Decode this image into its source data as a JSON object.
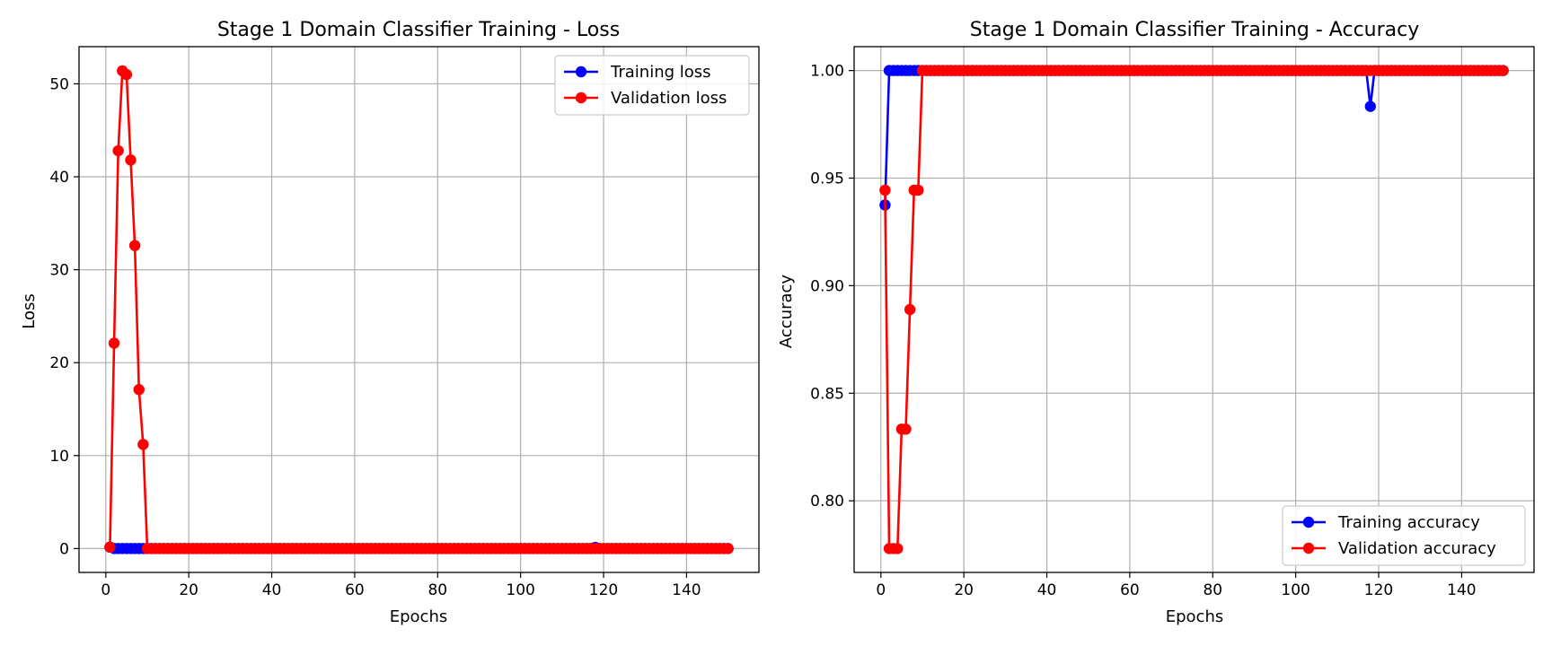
{
  "colors": {
    "training": "#0000ff",
    "validation": "#ff0000",
    "grid": "#b0b0b0",
    "axes": "#000000"
  },
  "chart_data": [
    {
      "type": "line",
      "title": "Stage 1 Domain Classifier Training - Loss",
      "xlabel": "Epochs",
      "ylabel": "Loss",
      "xlim": [
        -6.45,
        157.45
      ],
      "ylim": [
        -2.57,
        54.0
      ],
      "xticks": [
        0,
        20,
        40,
        60,
        80,
        100,
        120,
        140
      ],
      "yticks": [
        0,
        10,
        20,
        30,
        40,
        50
      ],
      "ytick_decimals": 0,
      "grid": true,
      "legend_position": "upper right",
      "x": {
        "start": 1,
        "end": 150
      },
      "series": [
        {
          "name": "Training loss",
          "color": "#0000ff",
          "default": 0.0,
          "values": {
            "1": 0.15,
            "118": 0.12
          }
        },
        {
          "name": "Validation loss",
          "color": "#ff0000",
          "default": 0.0,
          "values": {
            "1": 0.15,
            "2": 22.1,
            "3": 42.8,
            "4": 51.4,
            "5": 51.0,
            "6": 41.8,
            "7": 32.6,
            "8": 17.1,
            "9": 11.2
          }
        }
      ]
    },
    {
      "type": "line",
      "title": "Stage 1 Domain Classifier Training - Accuracy",
      "xlabel": "Epochs",
      "ylabel": "Accuracy",
      "xlim": [
        -6.45,
        157.45
      ],
      "ylim": [
        0.7667,
        1.0111
      ],
      "xticks": [
        0,
        20,
        40,
        60,
        80,
        100,
        120,
        140
      ],
      "yticks": [
        0.8,
        0.85,
        0.9,
        0.95,
        1.0
      ],
      "ytick_decimals": 2,
      "grid": true,
      "legend_position": "lower right",
      "x": {
        "start": 1,
        "end": 150
      },
      "series": [
        {
          "name": "Training accuracy",
          "color": "#0000ff",
          "default": 1.0,
          "values": {
            "1": 0.9375,
            "118": 0.9833
          }
        },
        {
          "name": "Validation accuracy",
          "color": "#ff0000",
          "default": 1.0,
          "values": {
            "1": 0.9444,
            "2": 0.7778,
            "3": 0.7778,
            "4": 0.7778,
            "5": 0.8333,
            "6": 0.8333,
            "7": 0.8889,
            "8": 0.9444,
            "9": 0.9444
          }
        }
      ]
    }
  ]
}
